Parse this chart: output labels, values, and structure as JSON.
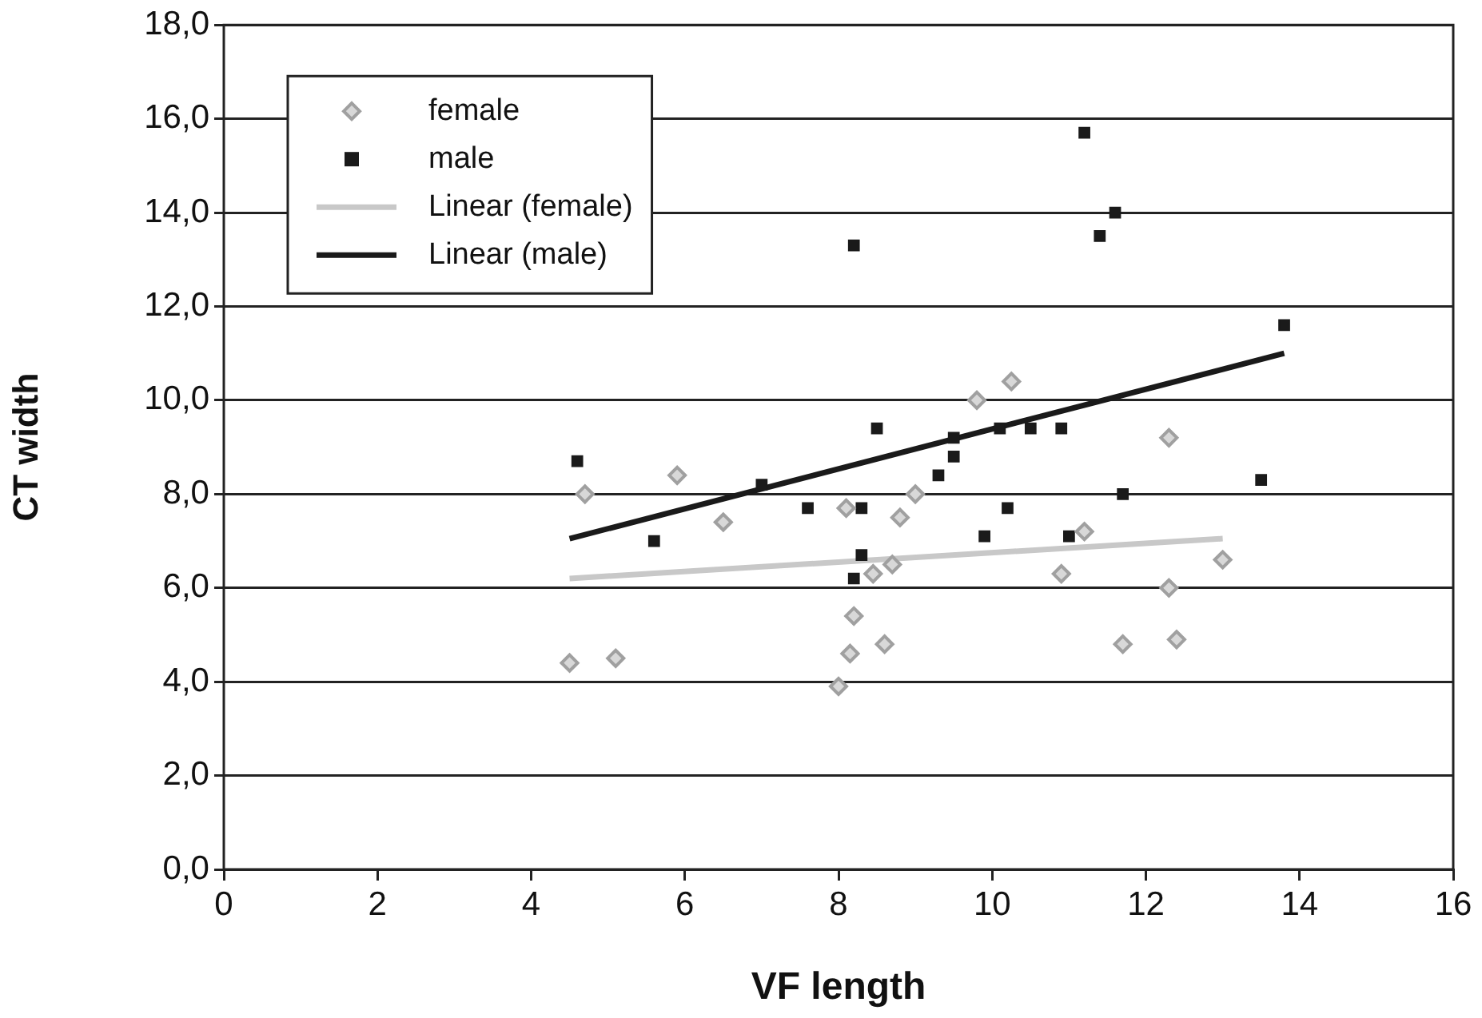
{
  "chart_data": {
    "type": "scatter",
    "xlabel": "VF length",
    "ylabel": "CT width",
    "xlim": [
      0,
      16
    ],
    "xticks": [
      0,
      2,
      4,
      6,
      8,
      10,
      12,
      14,
      16
    ],
    "ylim": [
      0,
      18
    ],
    "yticks": [
      {
        "value": 0,
        "label": "0,0"
      },
      {
        "value": 2,
        "label": "2,0"
      },
      {
        "value": 4,
        "label": "4,0"
      },
      {
        "value": 6,
        "label": "6,0"
      },
      {
        "value": 8,
        "label": "8,0"
      },
      {
        "value": 10,
        "label": "10,0"
      },
      {
        "value": 12,
        "label": "12,0"
      },
      {
        "value": 14,
        "label": "14,0"
      },
      {
        "value": 16,
        "label": "16,0"
      },
      {
        "value": 18,
        "label": "18,0"
      }
    ],
    "grid": "y",
    "legend": "top left",
    "series": [
      {
        "name": "female",
        "marker": "diamond",
        "color": "#a0a0a0",
        "x": [
          4.5,
          4.7,
          5.1,
          5.9,
          6.5,
          8.1,
          8.0,
          8.15,
          8.2,
          8.45,
          8.7,
          8.6,
          8.8,
          9.0,
          9.8,
          10.25,
          11.2,
          10.9,
          12.3,
          12.3,
          11.7,
          12.4,
          13.0
        ],
        "values": [
          4.4,
          8.0,
          4.5,
          8.4,
          7.4,
          7.7,
          3.9,
          4.6,
          5.4,
          6.3,
          6.5,
          4.8,
          7.5,
          8.0,
          10.0,
          10.4,
          7.2,
          6.3,
          9.2,
          6.0,
          4.8,
          4.9,
          6.6
        ]
      },
      {
        "name": "male",
        "marker": "square",
        "color": "#1a1a1a",
        "x": [
          4.6,
          5.6,
          7.0,
          7.6,
          8.3,
          8.3,
          8.2,
          8.5,
          9.3,
          9.5,
          9.5,
          10.1,
          10.5,
          10.9,
          10.2,
          9.9,
          11.0,
          11.7,
          13.5,
          13.8,
          11.2,
          11.6,
          11.4,
          8.2
        ],
        "values": [
          8.7,
          7.0,
          8.2,
          7.7,
          7.7,
          6.7,
          6.2,
          9.4,
          8.4,
          9.2,
          8.8,
          9.4,
          9.4,
          9.4,
          7.7,
          7.1,
          7.1,
          8.0,
          8.3,
          11.6,
          15.7,
          14.0,
          13.5,
          13.3
        ]
      },
      {
        "name": "Linear (female)",
        "type": "line",
        "marker": "none",
        "color": "#c8c8c8",
        "x": [
          4.5,
          13.0
        ],
        "values": [
          6.2,
          7.05
        ]
      },
      {
        "name": "Linear (male)",
        "type": "line",
        "marker": "none",
        "color": "#1a1a1a",
        "x": [
          4.5,
          13.8
        ],
        "values": [
          7.05,
          11.0
        ]
      }
    ]
  }
}
